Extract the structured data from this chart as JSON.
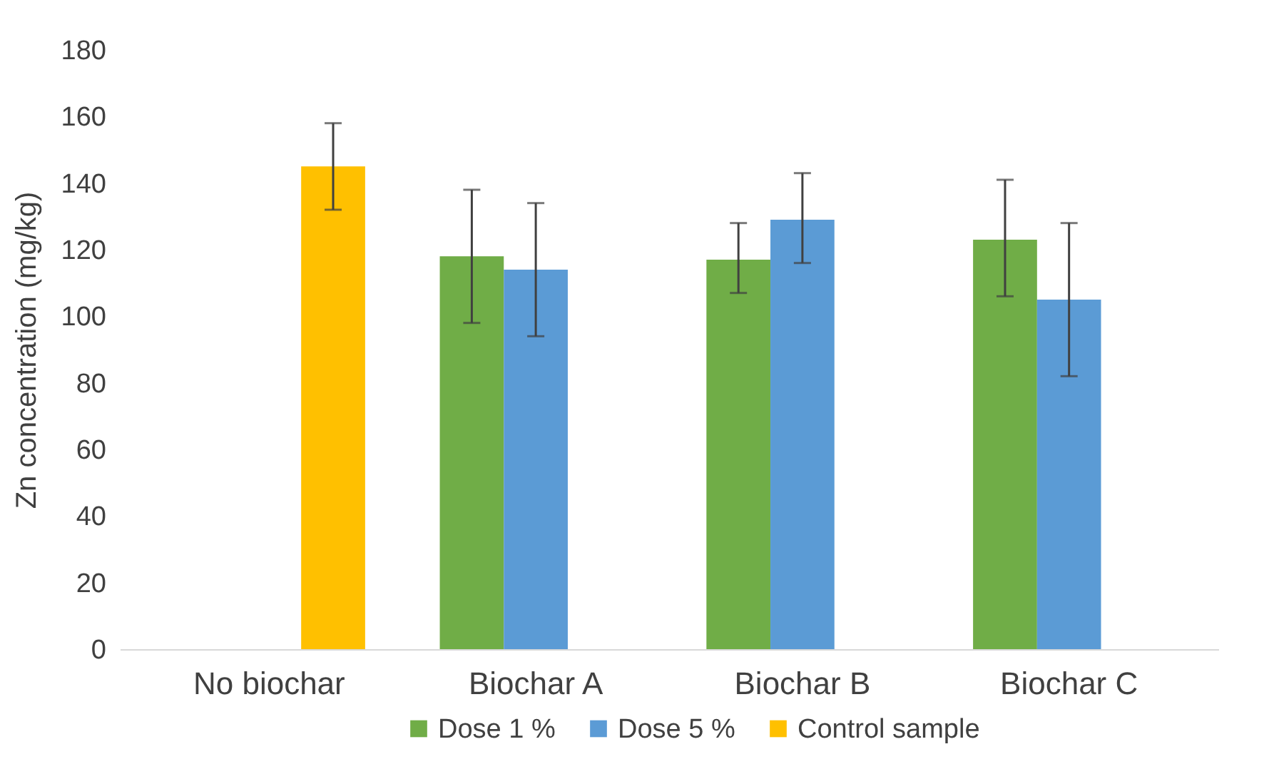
{
  "chart_data": {
    "type": "bar",
    "ylabel": "Zn concentration (mg/kg)",
    "categories": [
      "No biochar",
      "Biochar A",
      "Biochar B",
      "Biochar C"
    ],
    "series": [
      {
        "name": "Dose 1 %",
        "color": "#70ad47",
        "values": [
          null,
          118,
          117,
          123
        ],
        "errors": [
          null,
          [
            98,
            138
          ],
          [
            107,
            128
          ],
          [
            106,
            141
          ]
        ]
      },
      {
        "name": "Dose 5 %",
        "color": "#5b9bd5",
        "values": [
          null,
          114,
          129,
          105
        ],
        "errors": [
          null,
          [
            94,
            134
          ],
          [
            116,
            143
          ],
          [
            82,
            128
          ]
        ]
      },
      {
        "name": "Control sample",
        "color": "#ffc000",
        "values": [
          145,
          null,
          null,
          null
        ],
        "errors": [
          [
            132,
            158
          ],
          null,
          null,
          null
        ]
      }
    ],
    "ylim": [
      0,
      180
    ],
    "yticks": [
      0,
      20,
      40,
      60,
      80,
      100,
      120,
      140,
      160,
      180
    ],
    "grid": false,
    "legend": "bottom"
  }
}
